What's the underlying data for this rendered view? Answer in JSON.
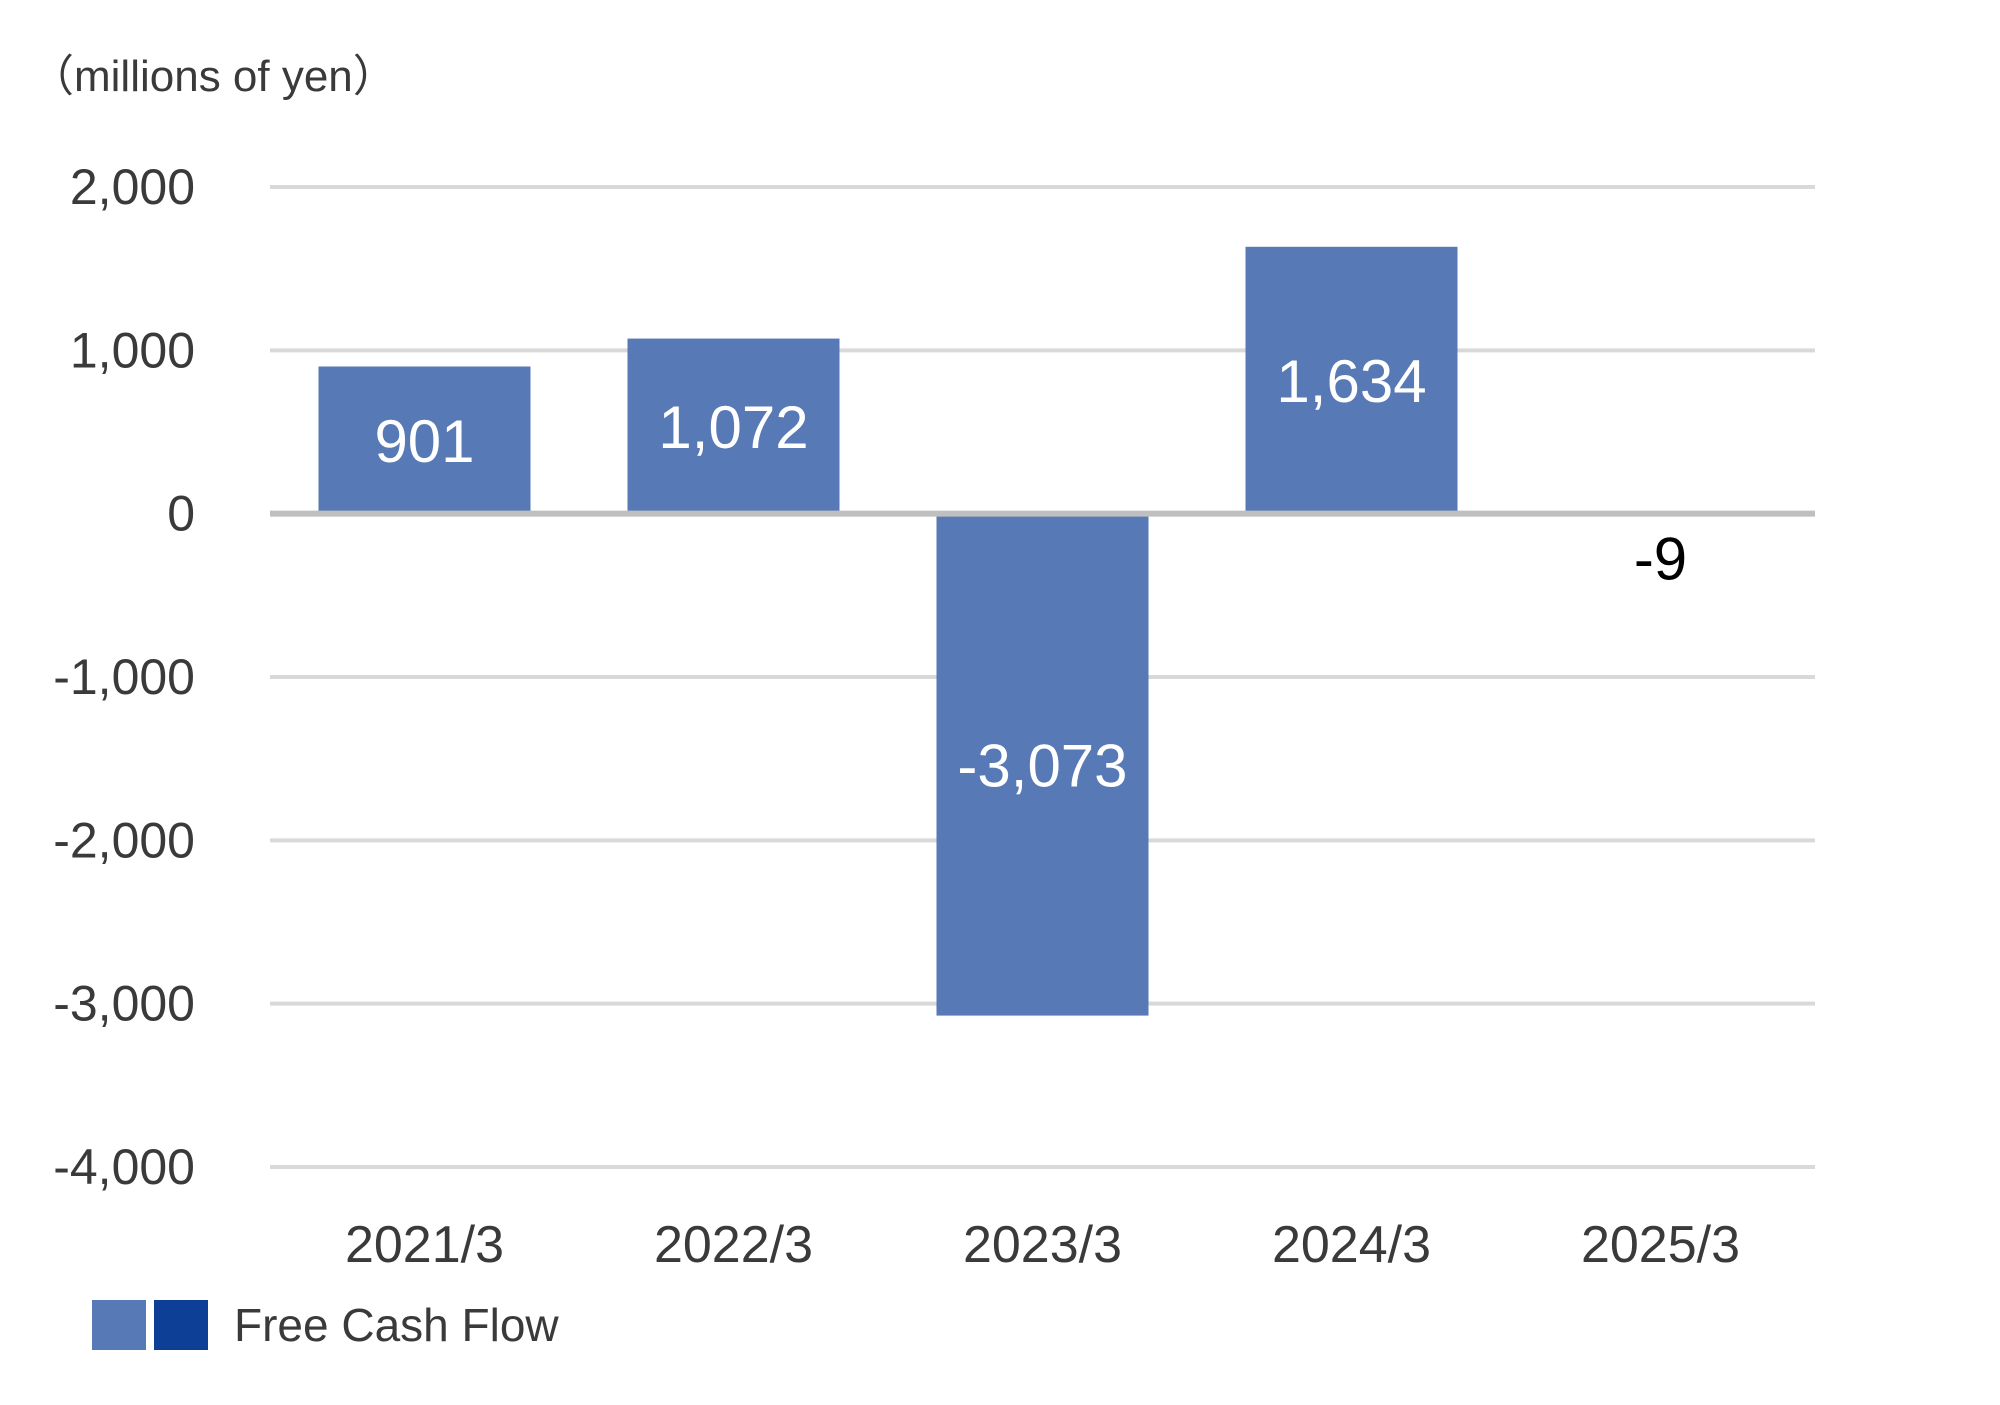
{
  "chart_data": {
    "type": "bar",
    "unit_label": "（millions of yen）",
    "categories": [
      "2021/3",
      "2022/3",
      "2023/3",
      "2024/3",
      "2025/3"
    ],
    "series": [
      {
        "name": "Free Cash Flow",
        "values": [
          901,
          1072,
          -3073,
          1634,
          -9
        ]
      }
    ],
    "data_labels": [
      "901",
      "1,072",
      "-3,073",
      "1,634",
      "-9"
    ],
    "yticks": [
      "2,000",
      "1,000",
      "0",
      "-1,000",
      "-2,000",
      "-3,000",
      "-4,000"
    ],
    "ylim": [
      -4000,
      2000
    ],
    "grid": true,
    "legend": {
      "position": "bottom-left",
      "label": "Free Cash Flow",
      "swatch_colors": [
        "#5779b6",
        "#0d3f97"
      ]
    },
    "colors": {
      "bar": "#5779b6",
      "grid": "#d9d9d9",
      "zero_line": "#bfbfbf",
      "text": "#3a3a3a",
      "label_inside": "#ffffff",
      "label_outside": "#000000"
    }
  }
}
